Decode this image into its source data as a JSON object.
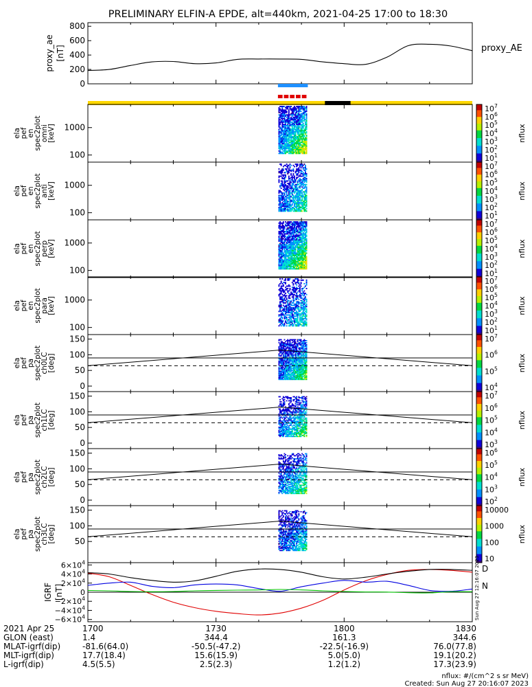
{
  "title": "PRELIMINARY ELFIN-A EPDE, alt=440km, 2021-04-25 17:00 to 18:30",
  "proxy_panel": {
    "ylabel_lines": [
      "proxy_ae",
      "[nT]"
    ],
    "legend": "proxy_AE",
    "ticks": [
      "800",
      "600",
      "400",
      "200",
      "0"
    ]
  },
  "spectrogram_panels": [
    {
      "ylabel_lines": [
        "ela",
        "pef",
        "en",
        "spec2plot",
        "omni",
        "[keV]"
      ],
      "ticks": [
        "1000",
        "100"
      ],
      "cbar_label": "nflux"
    },
    {
      "ylabel_lines": [
        "ela",
        "pef",
        "en",
        "spec2plot",
        "anti",
        "[keV]"
      ],
      "ticks": [
        "1000",
        "100"
      ],
      "cbar_label": "nflux"
    },
    {
      "ylabel_lines": [
        "ela",
        "pef",
        "en",
        "spec2plot",
        "perp",
        "[keV]"
      ],
      "ticks": [
        "1000",
        "100"
      ],
      "cbar_label": "nflux"
    },
    {
      "ylabel_lines": [
        "ela",
        "pef",
        "en",
        "spec2plot",
        "para",
        "[keV]"
      ],
      "ticks": [
        "1000",
        "100"
      ],
      "cbar_label": "nflux"
    }
  ],
  "pitch_panels": [
    {
      "ylabel_lines": [
        "ela",
        "pef",
        "pa",
        "spec2plot",
        "ch0LC",
        "[deg]"
      ],
      "ticks": [
        "150",
        "100",
        "50",
        "0"
      ],
      "cbar_label": "nflux"
    },
    {
      "ylabel_lines": [
        "ela",
        "pef",
        "pa",
        "spec2plot",
        "ch1LC",
        "[deg]"
      ],
      "ticks": [
        "150",
        "100",
        "50",
        "0"
      ],
      "cbar_label": "nflux"
    },
    {
      "ylabel_lines": [
        "ela",
        "pef",
        "pa",
        "spec2plot",
        "ch2LC",
        "[deg]"
      ],
      "ticks": [
        "150",
        "100",
        "50",
        "0"
      ],
      "cbar_label": "nflux"
    },
    {
      "ylabel_lines": [
        "ela",
        "pef",
        "pa",
        "spec2plot",
        "ch3LC",
        "[deg]"
      ],
      "ticks": [
        "150",
        "100",
        "50"
      ],
      "cbar_label": "nflux"
    }
  ],
  "colorbar_ticks": [
    [
      "10^7",
      "10^6",
      "10^5",
      "10^4",
      "10^3",
      "10^2",
      "10^1"
    ],
    [
      "10^7",
      "10^6",
      "10^5",
      "10^4",
      "10^3",
      "10^2",
      "10^1"
    ],
    [
      "10^7",
      "10^6",
      "10^5",
      "10^4",
      "10^3",
      "10^2",
      "10^1"
    ],
    [
      "10^7",
      "10^6",
      "10^5",
      "10^4",
      "10^3",
      "10^2",
      "10^1"
    ],
    [
      "10^7",
      "10^6",
      "10^5",
      "10^4"
    ],
    [
      "10^7",
      "10^6",
      "10^5",
      "10^4",
      "10^3"
    ],
    [
      "10^6",
      "10^5",
      "10^4",
      "10^3",
      "10^2"
    ],
    [
      "10000",
      "1000",
      "100",
      "10"
    ]
  ],
  "igrf_panel": {
    "ylabel_lines": [
      "IGRF",
      "[nT]"
    ],
    "ticks": [
      "6×10^4",
      "4×10^4",
      "2×10^4",
      "0",
      "−2×10^4",
      "−4×10^4",
      "−6×10^4"
    ],
    "labels": [
      "D",
      "N"
    ],
    "colors": {
      "D": "#e00000",
      "N": "#0000e0",
      "E": "#00c000",
      "total": "#000000"
    },
    "created_stamp": "Sun Aug 27 12:16:07 2023"
  },
  "bars": {
    "state": "#ffd700",
    "gap": "#000000",
    "science_blue": "#1e90ff",
    "science_red": "#e00000"
  },
  "footer": {
    "rows": [
      {
        "label": "2021 Apr 25",
        "values": [
          "1700",
          "1730",
          "1800",
          "1830"
        ]
      },
      {
        "label": "GLON (east)",
        "values": [
          "1.4",
          "344.4",
          "161.3",
          "344.6"
        ]
      },
      {
        "label": "MLAT-igrf(dip)",
        "values": [
          "-81.6(64.0)",
          "-50.5(-47.2)",
          "-22.5(-16.9)",
          "76.0(77.8)"
        ]
      },
      {
        "label": "MLT-igrf(dip)",
        "values": [
          "17.7(18.4)",
          "15.6(15.9)",
          "5.0(5.0)",
          "19.1(20.2)"
        ]
      },
      {
        "label": "L-igrf(dip)",
        "values": [
          "4.5(5.5)",
          "2.5(2.3)",
          "1.2(1.2)",
          "17.3(23.9)"
        ]
      }
    ],
    "units_note": "nflux: #/(cm^2 s sr MeV)",
    "created": "Created: Sun Aug 27 20:16:07 2023"
  },
  "chart_data": {
    "type": "line",
    "title": "PRELIMINARY ELFIN-A EPDE, alt=440km, 2021-04-25 17:00 to 18:30",
    "x_range": [
      "2021-04-25 17:00",
      "2021-04-25 18:30"
    ],
    "x_ticks": [
      "1700",
      "1730",
      "1800",
      "1830"
    ],
    "proxy_ae": {
      "ylabel": "proxy_ae [nT]",
      "ylim": [
        0,
        850
      ],
      "x_min": [
        0,
        5,
        10,
        15,
        20,
        25,
        30,
        35,
        40,
        45,
        50,
        55,
        60,
        65,
        70,
        75,
        80,
        85,
        90
      ],
      "values": [
        185,
        200,
        255,
        305,
        310,
        280,
        290,
        340,
        345,
        345,
        340,
        305,
        280,
        270,
        370,
        530,
        550,
        525,
        460
      ]
    },
    "science_interval_min": [
      44.5,
      51.5
    ],
    "igrf": {
      "ylabel": "IGRF [nT]",
      "ylim": [
        -65000,
        65000
      ],
      "x_min": [
        0,
        5,
        10,
        15,
        20,
        25,
        30,
        35,
        40,
        45,
        50,
        55,
        60,
        65,
        70,
        75,
        80,
        85,
        90
      ],
      "series": [
        {
          "name": "D",
          "values": [
            42000,
            34000,
            15000,
            -5000,
            -22000,
            -34000,
            -42000,
            -47000,
            -50000,
            -46000,
            -35000,
            -18000,
            5000,
            25000,
            39000,
            48000,
            50000,
            48000,
            44000
          ]
        },
        {
          "name": "N",
          "values": [
            15000,
            20000,
            22000,
            13000,
            10000,
            16000,
            18000,
            16000,
            8000,
            2000,
            12000,
            20000,
            26000,
            22000,
            24000,
            15000,
            4000,
            2000,
            7000
          ]
        },
        {
          "name": "E",
          "values": [
            4000,
            3000,
            1500,
            1000,
            1500,
            3000,
            4000,
            4500,
            5000,
            6000,
            5000,
            3000,
            1500,
            500,
            300,
            -1000,
            -1500,
            1000,
            1000
          ]
        },
        {
          "name": "total",
          "values": [
            43000,
            40000,
            32000,
            26000,
            22000,
            25000,
            35000,
            46000,
            51000,
            50000,
            44000,
            34000,
            29000,
            33000,
            40000,
            46000,
            50000,
            50000,
            48000
          ]
        }
      ]
    },
    "pitch_loss_cone_deg": 65,
    "pitch_antiloss_cone_deg": 90,
    "pitch_angle_curve": {
      "x_min": [
        0,
        45,
        90
      ],
      "values": [
        65,
        115,
        65
      ]
    }
  }
}
